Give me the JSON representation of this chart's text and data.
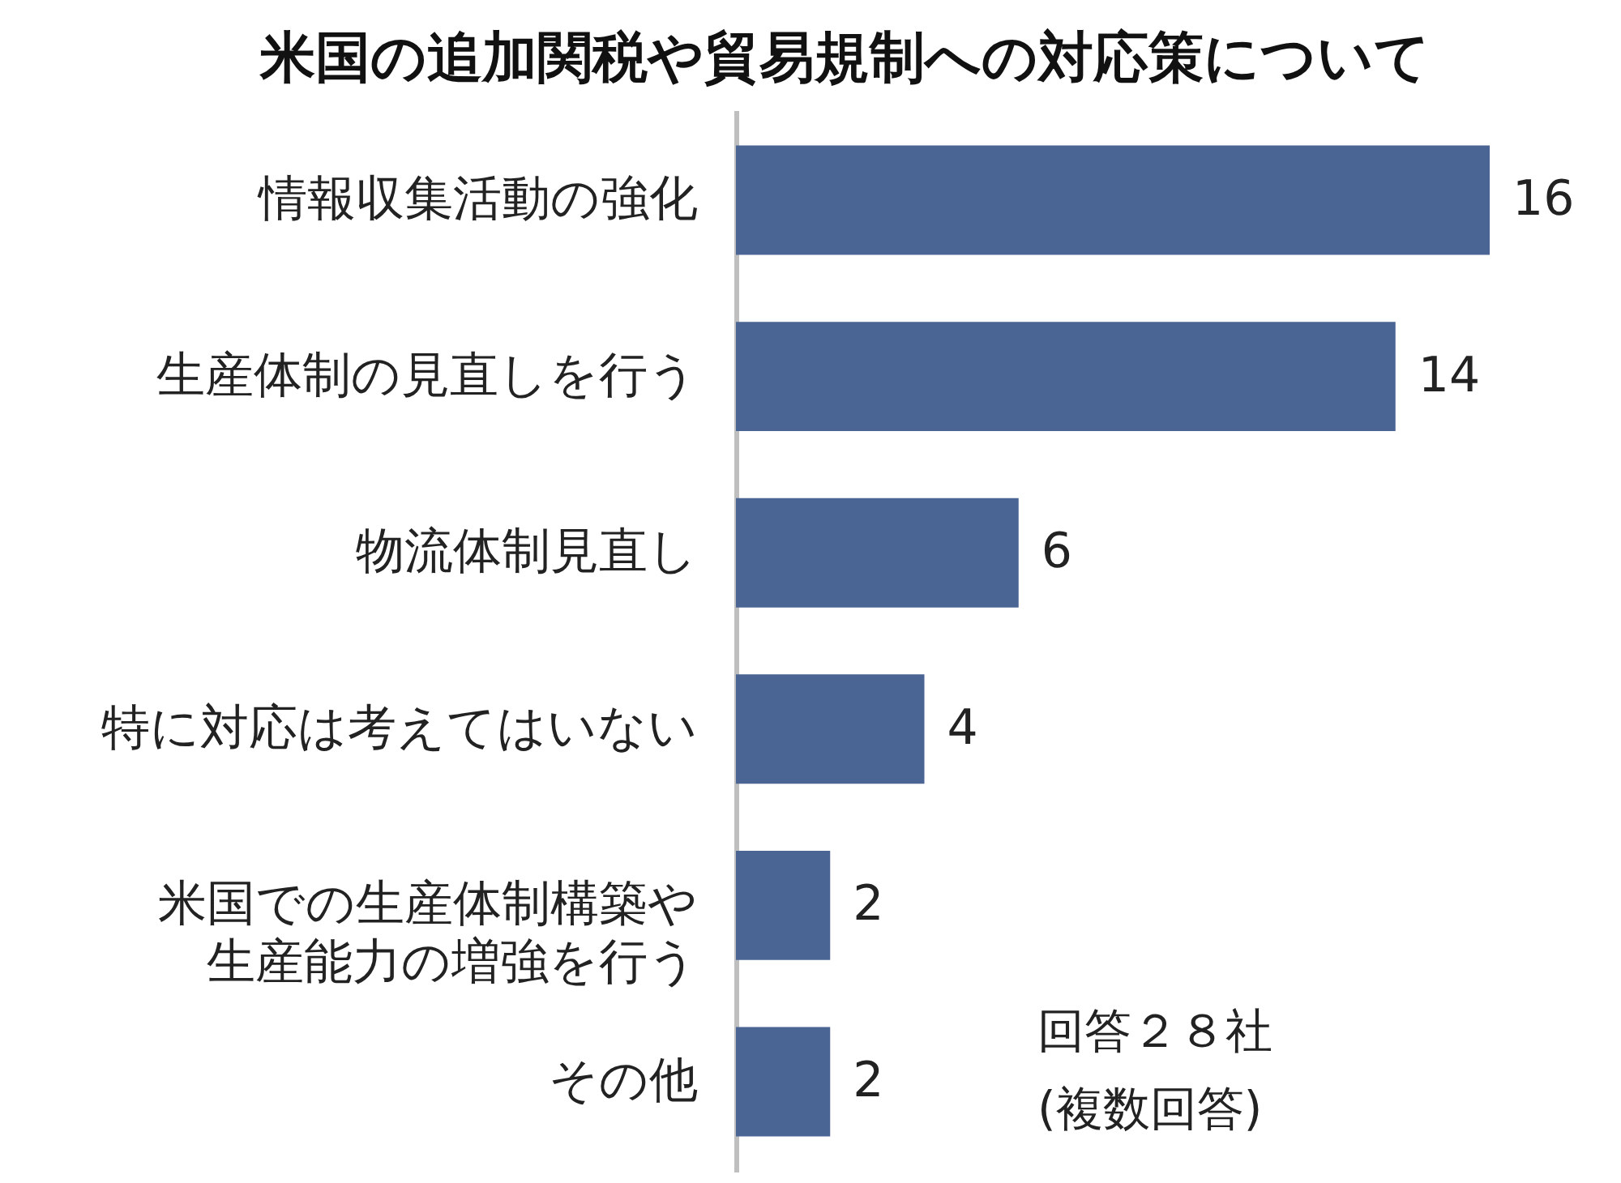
{
  "chart_data": {
    "type": "bar",
    "orientation": "horizontal",
    "title": "米国の追加関税や貿易規制への対応策について",
    "categories": [
      "情報収集活動の強化",
      "生産体制の見直しを行う",
      "物流体制見直し",
      "特に対応は考えてはいない",
      "米国での生産体制構築や生産能力の増強を行う",
      "その他"
    ],
    "values": [
      16,
      14,
      6,
      4,
      2,
      2
    ],
    "color": "#4a6494",
    "data_labels": true,
    "tick_labels": "y",
    "annotations": [
      "回答２８社",
      "(複数回答)"
    ]
  }
}
